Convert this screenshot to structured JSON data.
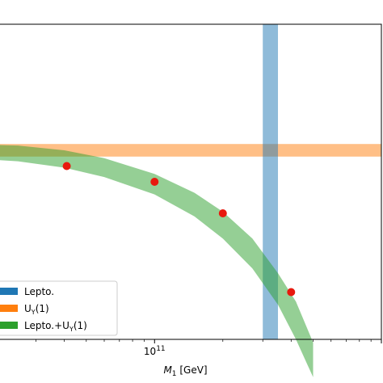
{
  "chart_data": {
    "type": "scatter",
    "xlabel": "M₁ [GeV]",
    "xscale": "log",
    "xlim": [
      15000000000.0,
      1000000000000.0
    ],
    "ylim": [
      0,
      1
    ],
    "x_tick_labels": [
      {
        "value": 100000000000.0,
        "base": "10",
        "exp": "11"
      }
    ],
    "grid": false,
    "legend": {
      "placement": "lower-left",
      "entries": [
        {
          "label": "Lepto.",
          "color": "#1f77b4"
        },
        {
          "label": "U",
          "sub": "Y",
          "suffix": "(1)",
          "color": "#ff7f0e"
        },
        {
          "label": "Lepto.+U",
          "sub": "Y",
          "suffix": "(1)",
          "color": "#2ca02c"
        }
      ]
    },
    "bands": [
      {
        "name": "Lepto.",
        "orientation": "vertical",
        "x_range": [
          300000000000.0,
          350000000000.0
        ],
        "color": "#1f77b4",
        "alpha": 0.5
      },
      {
        "name": "UY(1)",
        "orientation": "horizontal",
        "y_range": [
          0.58,
          0.62
        ],
        "color": "#ff7f0e",
        "alpha": 0.5
      }
    ],
    "combined_band": {
      "name": "Lepto.+UY(1)",
      "color": "#2ca02c",
      "alpha": 0.5,
      "points": [
        {
          "x": 15000000000.0,
          "y_low": 0.575,
          "y_high": 0.62
        },
        {
          "x": 25000000000.0,
          "y_low": 0.565,
          "y_high": 0.615
        },
        {
          "x": 40000000000.0,
          "y_low": 0.545,
          "y_high": 0.6
        },
        {
          "x": 60000000000.0,
          "y_low": 0.515,
          "y_high": 0.575
        },
        {
          "x": 100000000000.0,
          "y_low": 0.46,
          "y_high": 0.525
        },
        {
          "x": 150000000000.0,
          "y_low": 0.39,
          "y_high": 0.465
        },
        {
          "x": 200000000000.0,
          "y_low": 0.32,
          "y_high": 0.405
        },
        {
          "x": 270000000000.0,
          "y_low": 0.225,
          "y_high": 0.32
        },
        {
          "x": 350000000000.0,
          "y_low": 0.11,
          "y_high": 0.21
        },
        {
          "x": 420000000000.0,
          "y_low": 0.0,
          "y_high": 0.12
        },
        {
          "x": 500000000000.0,
          "y_low": -0.12,
          "y_high": -0.01
        }
      ]
    },
    "series": [
      {
        "color": "#e8190e",
        "points": [
          {
            "x": 41000000000.0,
            "y": 0.55
          },
          {
            "x": 100000000000.0,
            "y": 0.5
          },
          {
            "x": 200000000000.0,
            "y": 0.4
          },
          {
            "x": 400000000000.0,
            "y": 0.15
          }
        ]
      }
    ]
  }
}
